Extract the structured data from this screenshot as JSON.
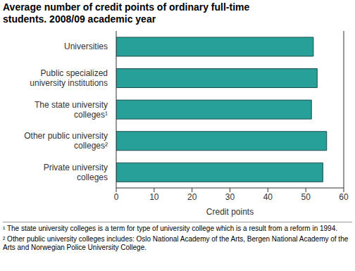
{
  "chart_data": {
    "type": "bar",
    "orientation": "horizontal",
    "title": "Average number of credit points of ordinary full-time students. 2008/09 academic year",
    "categories": [
      "Universities",
      "Public specialized university institutions",
      "The state university colleges¹",
      "Other public university colleges²",
      "Private university colleges"
    ],
    "values": [
      52,
      53,
      51.5,
      55.5,
      54.5
    ],
    "color": "#27a09a",
    "xlabel": "Credit points",
    "xlim": [
      0,
      60
    ],
    "xticks": [
      0,
      10,
      20,
      30,
      40,
      50,
      60
    ],
    "grid": false,
    "footnotes": [
      "¹ The state university colleges is a term for type of university college which is a result from a reform in 1994.",
      "² Other public university colleges includes: Oslo National Academy of the Arts, Bergen National Academy of the Arts and Norwegian Police University College."
    ]
  }
}
